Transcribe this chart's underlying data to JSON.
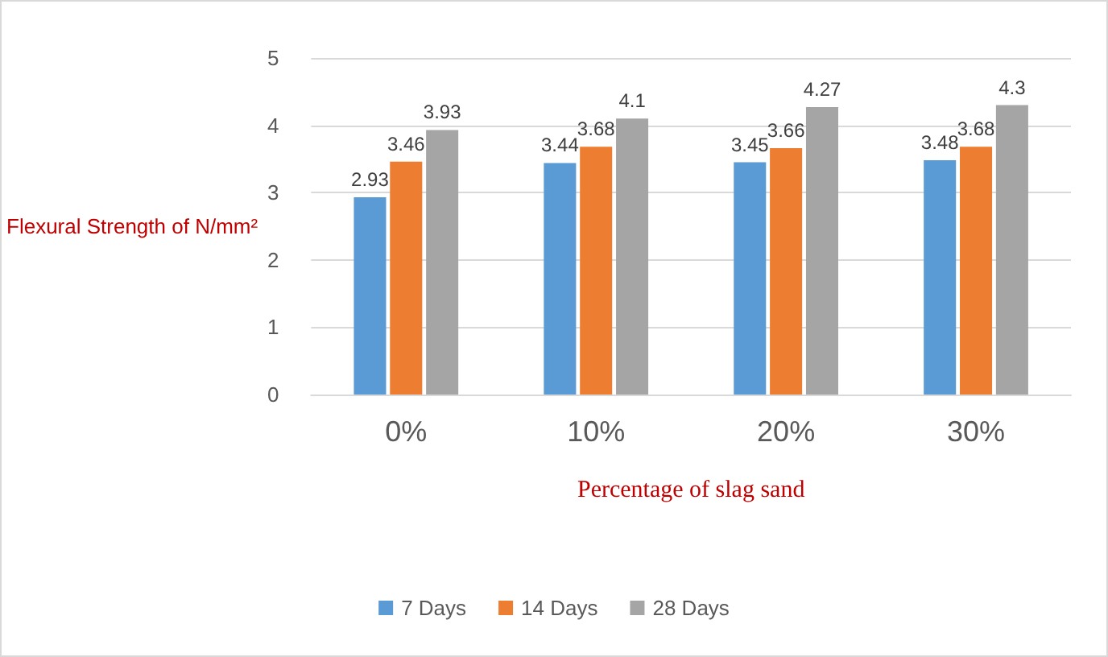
{
  "chart_data": {
    "type": "bar",
    "categories": [
      "0%",
      "10%",
      "20%",
      "30%"
    ],
    "series": [
      {
        "name": "7 Days",
        "color": "#5b9bd5",
        "values": [
          2.93,
          3.44,
          3.45,
          3.48
        ]
      },
      {
        "name": "14 Days",
        "color": "#ed7d31",
        "values": [
          3.46,
          3.68,
          3.66,
          3.68
        ]
      },
      {
        "name": "28 Days",
        "color": "#a5a5a5",
        "values": [
          3.93,
          4.1,
          4.27,
          4.3
        ]
      }
    ],
    "xlabel": "Percentage of slag sand",
    "ylabel": "Flexural Strength of N/mm²",
    "ylim": [
      0,
      5
    ],
    "yticks": [
      0,
      1,
      2,
      3,
      4,
      5
    ],
    "grid": "y",
    "legend": "bottom",
    "data_labels": true
  }
}
